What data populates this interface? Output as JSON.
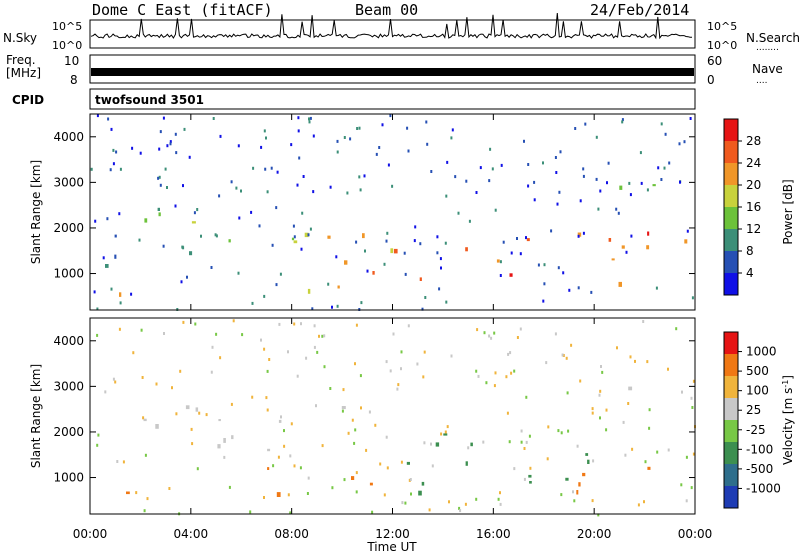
{
  "header": {
    "station": "Dome C East (fitACF)",
    "beam": "Beam 00",
    "date": "24/Feb/2014"
  },
  "strip_labels": {
    "nsky": "N.Sky",
    "nsearch": "N.Search",
    "nsearch_dots": "........",
    "freq_line1": "Freq.",
    "freq_line2": "[MHz]",
    "nave": "Nave",
    "nave_dots": "....",
    "cpid": "CPID",
    "cpid_value": "twofsound 3501"
  },
  "strip_ticks": {
    "nsky_left": [
      "10^5",
      "10^0"
    ],
    "nsky_right": [
      "10^5",
      "10^0"
    ],
    "freq_left": [
      "10",
      "8"
    ],
    "nave_right": [
      "60",
      "0"
    ]
  },
  "chart_data": [
    {
      "type": "heatmap",
      "title": "",
      "ylabel": "Slant Range [km]",
      "xlabel": "",
      "ylim": [
        200,
        4500
      ],
      "yticks": [
        1000,
        2000,
        3000,
        4000
      ],
      "colorbar": {
        "label": "Power [dB]",
        "range": [
          0,
          32
        ],
        "ticks": [
          "28",
          "24",
          "20",
          "16",
          "12",
          "8",
          "4"
        ],
        "colors": [
          "#1010e6",
          "#2650b4",
          "#3c8f78",
          "#6cc23a",
          "#c8d23c",
          "#f09628",
          "#f05a1e",
          "#e61414"
        ]
      },
      "scatter_bands": [
        {
          "t": [
            0,
            2
          ],
          "r": [
            400,
            900
          ],
          "power": [
            20,
            28
          ]
        },
        {
          "t": [
            0,
            4
          ],
          "r": [
            1200,
            2200
          ],
          "power": [
            4,
            12
          ]
        },
        {
          "t": [
            2,
            8
          ],
          "r": [
            1600,
            2600
          ],
          "power": [
            8,
            20
          ]
        },
        {
          "t": [
            7,
            12
          ],
          "r": [
            600,
            1400
          ],
          "power": [
            16,
            28
          ]
        },
        {
          "t": [
            8,
            12
          ],
          "r": [
            1500,
            2800
          ],
          "power": [
            12,
            24
          ]
        },
        {
          "t": [
            12,
            16
          ],
          "r": [
            900,
            1600
          ],
          "power": [
            24,
            32
          ]
        },
        {
          "t": [
            16,
            24
          ],
          "r": [
            800,
            2000
          ],
          "power": [
            20,
            32
          ]
        },
        {
          "t": [
            20,
            24
          ],
          "r": [
            2800,
            3200
          ],
          "power": [
            8,
            16
          ]
        }
      ]
    },
    {
      "type": "heatmap",
      "title": "",
      "ylabel": "Slant Range [km]",
      "xlabel": "Time UT",
      "ylim": [
        200,
        4500
      ],
      "yticks": [
        1000,
        2000,
        3000,
        4000
      ],
      "xticks": [
        "00:00",
        "04:00",
        "08:00",
        "12:00",
        "16:00",
        "20:00",
        "00:00"
      ],
      "colorbar": {
        "label": "Velocity [m s^-1]",
        "ticks": [
          "1000",
          "500",
          "100",
          "25",
          "-25",
          "-100",
          "-500",
          "-1000"
        ],
        "colors": [
          "#1e3cb4",
          "#2e6e8c",
          "#3c8f50",
          "#78c846",
          "#c8c8c8",
          "#f0b43c",
          "#f07814",
          "#e61414"
        ]
      },
      "scatter_bands": [
        {
          "t": [
            0,
            2
          ],
          "r": [
            450,
            800
          ],
          "velocity": [
            -500,
            -100
          ]
        },
        {
          "t": [
            2,
            12
          ],
          "r": [
            1600,
            2600
          ],
          "velocity": [
            -25,
            25
          ]
        },
        {
          "t": [
            7,
            12
          ],
          "r": [
            600,
            1300
          ],
          "velocity": [
            -500,
            -100
          ]
        },
        {
          "t": [
            12,
            20
          ],
          "r": [
            700,
            2000
          ],
          "velocity": [
            100,
            500
          ]
        },
        {
          "t": [
            18,
            24
          ],
          "r": [
            700,
            1300
          ],
          "velocity": [
            -500,
            -100
          ]
        },
        {
          "t": [
            20,
            24
          ],
          "r": [
            2900,
            3200
          ],
          "velocity": [
            -25,
            25
          ]
        }
      ]
    }
  ]
}
